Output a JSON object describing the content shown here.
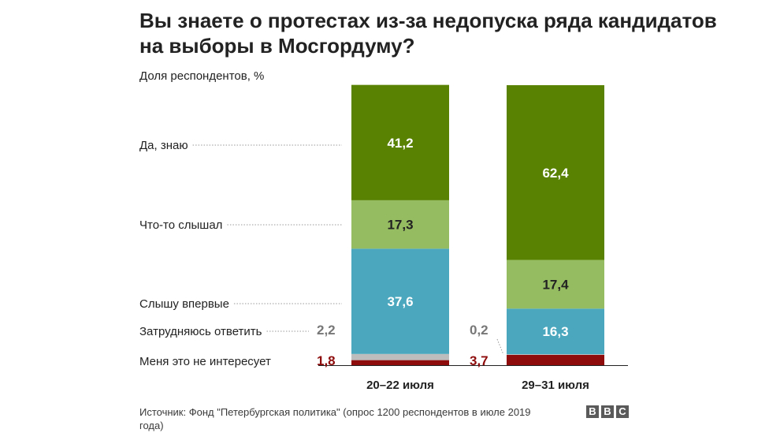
{
  "chart_data": {
    "type": "bar",
    "stacked": true,
    "title": "Вы знаете о протестах из-за недопуска ряда кандидатов на выборы в Мосгордуму?",
    "ylabel": "Доля респондентов, %",
    "ylim": [
      0,
      100
    ],
    "grid": false,
    "categories": [
      "20–22 июля",
      "29–31 июля"
    ],
    "series": [
      {
        "name": "Меня это не интересует",
        "values": [
          1.8,
          3.7
        ],
        "labels": [
          "1,8",
          "3,7"
        ],
        "color": "#8e0c0c"
      },
      {
        "name": "Затрудняюсь ответить",
        "values": [
          2.2,
          0.2
        ],
        "labels": [
          "2,2",
          "0,2"
        ],
        "color": "#bdbdbd"
      },
      {
        "name": "Слышу впервые",
        "values": [
          37.6,
          16.3
        ],
        "labels": [
          "37,6",
          "16,3"
        ],
        "color": "#4aa7bd"
      },
      {
        "name": "Что-то слышал",
        "values": [
          17.3,
          17.4
        ],
        "labels": [
          "17,3",
          "17,4"
        ],
        "color": "#96bc62"
      },
      {
        "name": "Да, знаю",
        "values": [
          41.2,
          62.4
        ],
        "labels": [
          "41,2",
          "62,4"
        ],
        "color": "#598203"
      }
    ]
  },
  "source": "Источник: Фонд \"Петербургская политика\" (опрос 1200 респондентов в июле 2019 года)",
  "logo": [
    "B",
    "B",
    "C"
  ],
  "colors": {
    "label_dark": "#222222",
    "label_light": "#ffffff",
    "small_grey": "#777777",
    "small_red": "#8e0c0c",
    "leader": "#999999"
  }
}
